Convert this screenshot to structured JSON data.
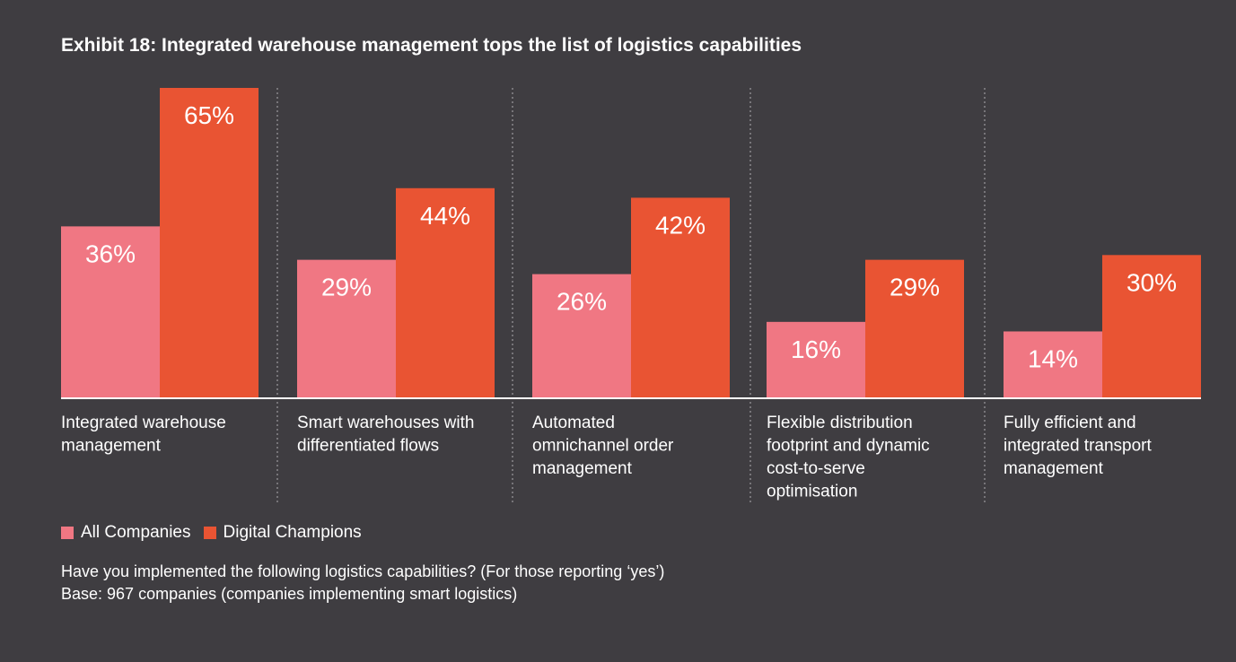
{
  "title": "Exhibit 18: Integrated warehouse management tops the list of logistics capabilities",
  "colors": {
    "background": "#3f3d41",
    "all_companies": "#f07783",
    "digital_champions": "#e95433",
    "baseline": "#ffffff",
    "divider": "#8a888c"
  },
  "legend": {
    "items": [
      {
        "label": "All Companies",
        "color": "#f07783"
      },
      {
        "label": "Digital Champions",
        "color": "#e95433"
      }
    ]
  },
  "footnotes": {
    "question": "Have you implemented the following logistics capabilities? (For those reporting ‘yes’)",
    "base": "Base: 967 companies (companies implementing smart logistics)"
  },
  "chart_data": {
    "type": "bar",
    "categories": [
      [
        "Integrated warehouse",
        "management"
      ],
      [
        "Smart warehouses with",
        "differentiated flows"
      ],
      [
        "Automated",
        "omnichannel order",
        "management"
      ],
      [
        "Flexible distribution",
        "footprint and dynamic",
        "cost-to-serve",
        "optimisation"
      ],
      [
        "Fully efficient and",
        "integrated transport",
        "management"
      ]
    ],
    "series": [
      {
        "name": "All Companies",
        "values": [
          36,
          29,
          26,
          16,
          14
        ],
        "labels": [
          "36%",
          "29%",
          "26%",
          "16%",
          "14%"
        ]
      },
      {
        "name": "Digital Champions",
        "values": [
          65,
          44,
          42,
          29,
          30
        ],
        "labels": [
          "65%",
          "44%",
          "42%",
          "29%",
          "30%"
        ]
      }
    ],
    "title": "Exhibit 18: Integrated warehouse management tops the list of logistics capabilities",
    "xlabel": "",
    "ylabel": "",
    "ylim": [
      0,
      65
    ],
    "grid": false,
    "legend_position": "bottom-left"
  }
}
